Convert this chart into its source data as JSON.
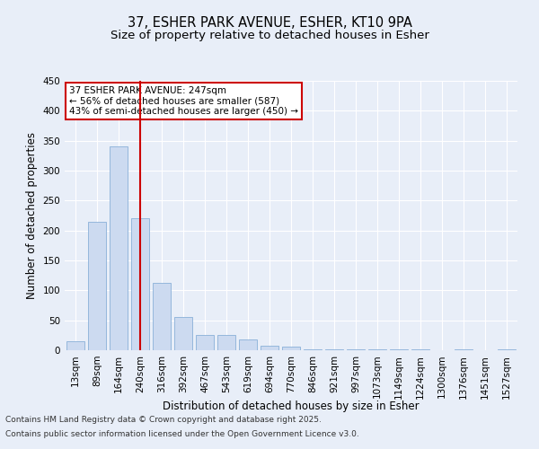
{
  "title_line1": "37, ESHER PARK AVENUE, ESHER, KT10 9PA",
  "title_line2": "Size of property relative to detached houses in Esher",
  "xlabel": "Distribution of detached houses by size in Esher",
  "ylabel": "Number of detached properties",
  "categories": [
    "13sqm",
    "89sqm",
    "164sqm",
    "240sqm",
    "316sqm",
    "392sqm",
    "467sqm",
    "543sqm",
    "619sqm",
    "694sqm",
    "770sqm",
    "846sqm",
    "921sqm",
    "997sqm",
    "1073sqm",
    "1149sqm",
    "1224sqm",
    "1300sqm",
    "1376sqm",
    "1451sqm",
    "1527sqm"
  ],
  "values": [
    15,
    215,
    340,
    220,
    112,
    55,
    25,
    25,
    18,
    8,
    6,
    1,
    1,
    1,
    1,
    1,
    1,
    0,
    1,
    0,
    1
  ],
  "bar_color": "#ccdaf0",
  "bar_edge_color": "#8ab0d8",
  "vline_x": 3,
  "vline_color": "#cc0000",
  "annotation_text": "37 ESHER PARK AVENUE: 247sqm\n← 56% of detached houses are smaller (587)\n43% of semi-detached houses are larger (450) →",
  "annotation_box_facecolor": "#ffffff",
  "annotation_box_edgecolor": "#cc0000",
  "ylim": [
    0,
    450
  ],
  "yticks": [
    0,
    50,
    100,
    150,
    200,
    250,
    300,
    350,
    400,
    450
  ],
  "background_color": "#e8eef8",
  "grid_color": "#ffffff",
  "footer_line1": "Contains HM Land Registry data © Crown copyright and database right 2025.",
  "footer_line2": "Contains public sector information licensed under the Open Government Licence v3.0.",
  "title_fontsize": 10.5,
  "subtitle_fontsize": 9.5,
  "axis_label_fontsize": 8.5,
  "tick_fontsize": 7.5,
  "annotation_fontsize": 7.5,
  "footer_fontsize": 6.5,
  "font_family": "DejaVu Sans"
}
